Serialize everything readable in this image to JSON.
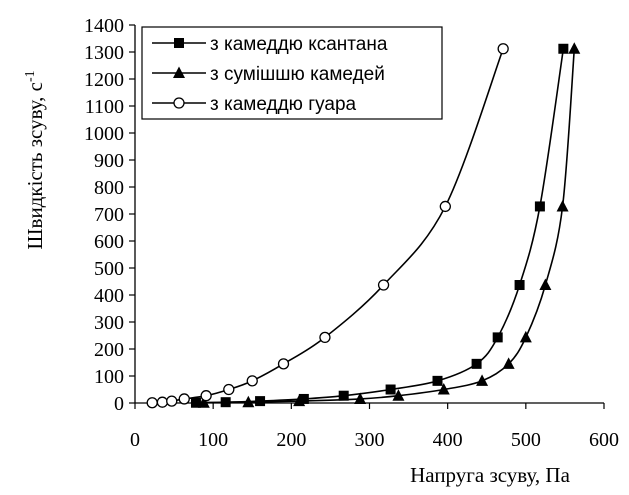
{
  "chart_data": {
    "type": "scatter",
    "title": "",
    "xlabel": "Напруга зсуву, Па",
    "ylabel": "Швидкість зсуву, с",
    "ylabel_superscript": "-1",
    "xlim": [
      0,
      600
    ],
    "ylim": [
      0,
      1400
    ],
    "x_ticks": [
      0,
      100,
      200,
      300,
      400,
      500,
      600
    ],
    "y_ticks": [
      0,
      100,
      200,
      300,
      400,
      500,
      600,
      700,
      800,
      900,
      1000,
      1100,
      1200,
      1300,
      1400
    ],
    "grid": false,
    "legend_position": "top-left",
    "series": [
      {
        "name": "з камеддю ксантана",
        "marker": "filled-square",
        "color": "#000000",
        "points": [
          {
            "x": 78,
            "y": 1
          },
          {
            "x": 116,
            "y": 3
          },
          {
            "x": 160,
            "y": 7
          },
          {
            "x": 216,
            "y": 15
          },
          {
            "x": 267,
            "y": 27
          },
          {
            "x": 327,
            "y": 50
          },
          {
            "x": 387,
            "y": 82
          },
          {
            "x": 437,
            "y": 145
          },
          {
            "x": 464,
            "y": 243
          },
          {
            "x": 492,
            "y": 437
          },
          {
            "x": 518,
            "y": 728
          },
          {
            "x": 548,
            "y": 1312
          }
        ]
      },
      {
        "name": "з сумішшю камедей",
        "marker": "filled-triangle",
        "color": "#000000",
        "points": [
          {
            "x": 88,
            "y": 1
          },
          {
            "x": 145,
            "y": 3
          },
          {
            "x": 210,
            "y": 7
          },
          {
            "x": 288,
            "y": 15
          },
          {
            "x": 337,
            "y": 27
          },
          {
            "x": 395,
            "y": 50
          },
          {
            "x": 444,
            "y": 82
          },
          {
            "x": 478,
            "y": 145
          },
          {
            "x": 500,
            "y": 243
          },
          {
            "x": 525,
            "y": 437
          },
          {
            "x": 547,
            "y": 728
          },
          {
            "x": 562,
            "y": 1312
          }
        ]
      },
      {
        "name": "з камеддю гуара",
        "marker": "open-circle",
        "color": "#000000",
        "points": [
          {
            "x": 22,
            "y": 1
          },
          {
            "x": 35,
            "y": 3
          },
          {
            "x": 47,
            "y": 7
          },
          {
            "x": 63,
            "y": 15
          },
          {
            "x": 91,
            "y": 27
          },
          {
            "x": 120,
            "y": 50
          },
          {
            "x": 150,
            "y": 82
          },
          {
            "x": 190,
            "y": 145
          },
          {
            "x": 243,
            "y": 243
          },
          {
            "x": 318,
            "y": 437
          },
          {
            "x": 397,
            "y": 728
          },
          {
            "x": 471,
            "y": 1312
          }
        ]
      }
    ]
  }
}
